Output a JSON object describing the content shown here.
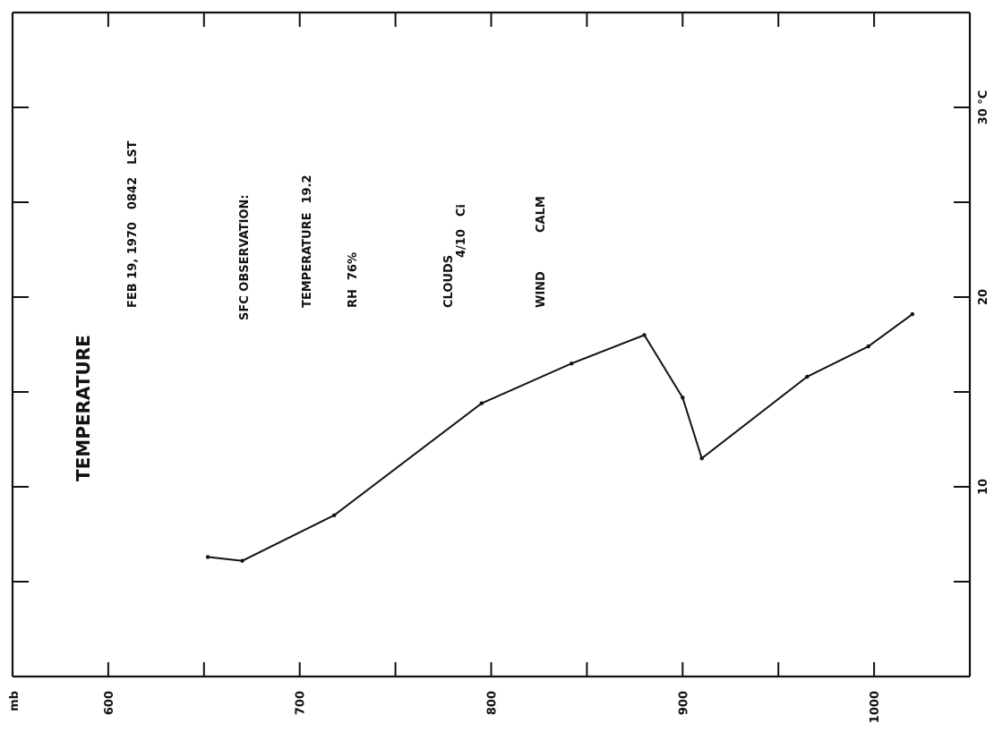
{
  "chart_data": {
    "type": "line",
    "title": "TEMPERATURE",
    "annotations": {
      "date": "FEB 19, 1970",
      "time": "0842",
      "time_zone": "LST",
      "sfc_observation_label": "SFC OBSERVATION:",
      "temperature_label": "TEMPERATURE",
      "temperature_value": "19.2",
      "rh_label": "RH",
      "rh_value": "76%",
      "clouds_label": "CLOUDS",
      "clouds_value": "4/10",
      "clouds_type": "Ci",
      "wind_label": "WIND",
      "wind_value": "CALM"
    },
    "pressure_axis": {
      "unit_label": "mb",
      "range": [
        550,
        1050
      ],
      "tick_labels": [
        "600",
        "700",
        "800",
        "900",
        "1000"
      ],
      "ticks": [
        550,
        600,
        650,
        700,
        750,
        800,
        850,
        900,
        950,
        1000,
        1050
      ]
    },
    "temperature_axis": {
      "range": [
        0,
        35
      ],
      "tick_labels": [
        "10",
        "20",
        "30 °C"
      ],
      "ticks": [
        5,
        10,
        15,
        20,
        25,
        30,
        35
      ]
    },
    "series": [
      {
        "pressure": [
          652,
          670,
          718,
          795,
          842,
          880,
          900,
          910,
          965,
          997,
          1020
        ],
        "temperature": [
          6.3,
          6.1,
          8.5,
          14.4,
          16.5,
          18.0,
          14.7,
          11.5,
          15.8,
          17.4,
          19.1
        ]
      }
    ],
    "grid": false
  }
}
